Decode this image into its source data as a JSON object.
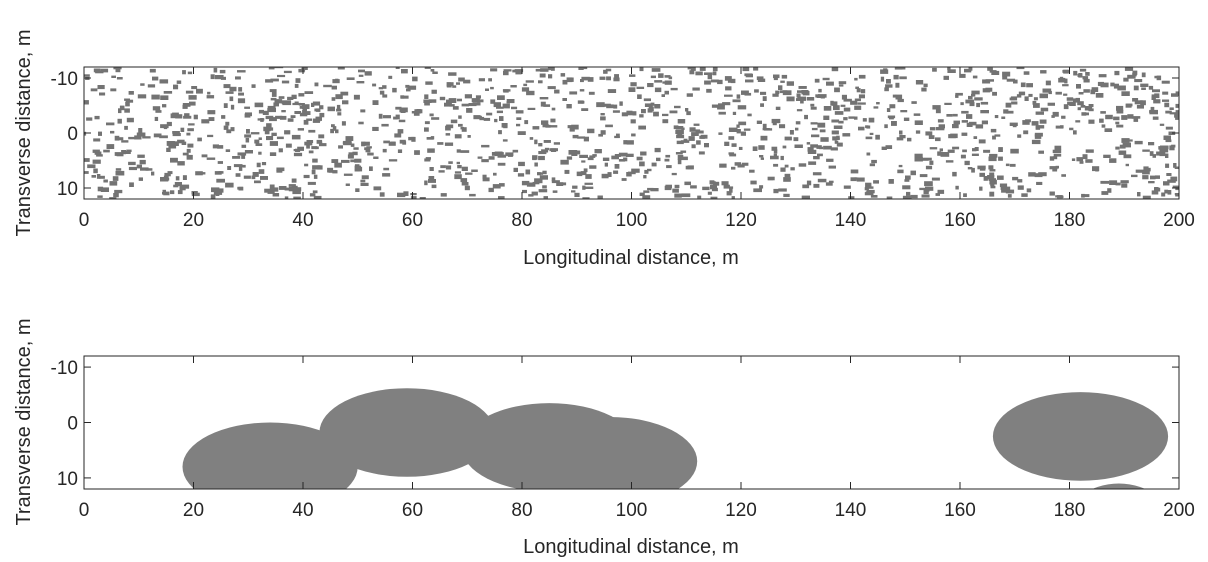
{
  "chart_data": [
    {
      "type": "scatter",
      "subtype": "particle-field",
      "title": "",
      "xlabel": "Longitudinal distance, m",
      "ylabel": "Transverse distance, m",
      "xlim": [
        0,
        200
      ],
      "ylim": [
        -12,
        12
      ],
      "y_reversed": true,
      "xticks": [
        0,
        20,
        40,
        60,
        80,
        100,
        120,
        140,
        160,
        180,
        200
      ],
      "yticks": [
        -10,
        0,
        10
      ],
      "xtick_labels": [
        "0",
        "20",
        "40",
        "60",
        "80",
        "100",
        "120",
        "140",
        "160",
        "180",
        "200"
      ],
      "ytick_labels": [
        "-10",
        "0",
        "10"
      ],
      "grid": false,
      "marker_color": "#737373",
      "approx_particle_count": 1500,
      "particle_length_m": [
        0.6,
        1.6
      ],
      "particle_width_m": [
        0.4,
        0.9
      ]
    },
    {
      "type": "scatter",
      "subtype": "ellipse-regions",
      "title": "",
      "xlabel": "Longitudinal distance, m",
      "ylabel": "Transverse distance, m",
      "xlim": [
        0,
        200
      ],
      "ylim": [
        -12,
        12
      ],
      "y_reversed": true,
      "xticks": [
        0,
        20,
        40,
        60,
        80,
        100,
        120,
        140,
        160,
        180,
        200
      ],
      "yticks": [
        -10,
        0,
        10
      ],
      "xtick_labels": [
        "0",
        "20",
        "40",
        "60",
        "80",
        "100",
        "120",
        "140",
        "160",
        "180",
        "200"
      ],
      "ytick_labels": [
        "-10",
        "0",
        "10"
      ],
      "grid": false,
      "fill_color": "#808080",
      "ellipses": [
        {
          "cx": 34,
          "cy": 8,
          "rx": 16,
          "ry": 8
        },
        {
          "cx": 59,
          "cy": 1.8,
          "rx": 16,
          "ry": 8
        },
        {
          "cx": 85,
          "cy": 4.5,
          "rx": 16,
          "ry": 8
        },
        {
          "cx": 96,
          "cy": 7,
          "rx": 16,
          "ry": 8
        },
        {
          "cx": 182,
          "cy": 2.5,
          "rx": 16,
          "ry": 8
        },
        {
          "cx": 189,
          "cy": 19,
          "rx": 10,
          "ry": 8
        }
      ]
    }
  ]
}
